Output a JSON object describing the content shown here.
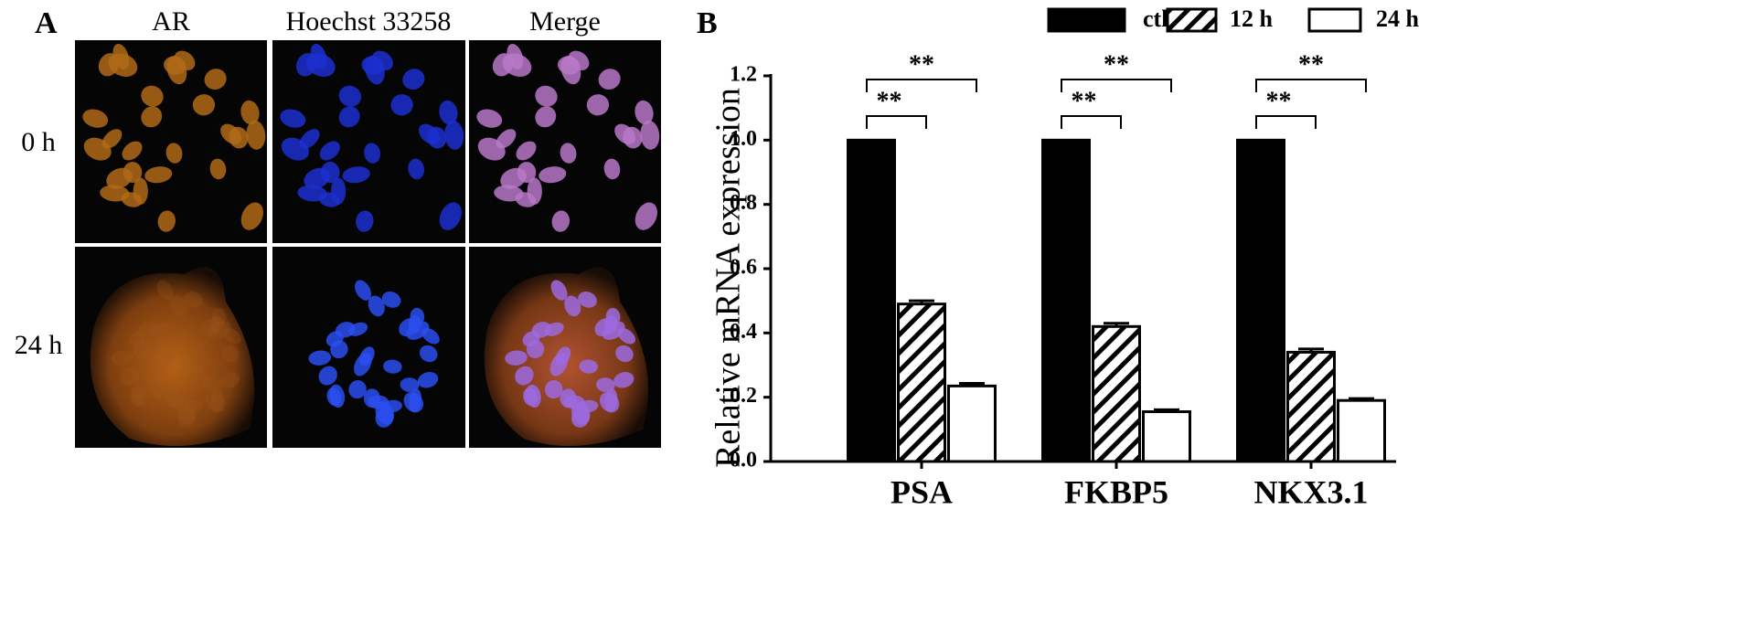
{
  "panel_a": {
    "label": "A",
    "columns": [
      "AR",
      "Hoechst 33258",
      "Merge"
    ],
    "rows": [
      "0 h",
      "24 h"
    ]
  },
  "chart_data": {
    "type": "bar",
    "panel_label": "B",
    "ylabel": "Relative mRNA expression",
    "categories": [
      "PSA",
      "FKBP5",
      "NKX3.1"
    ],
    "series": [
      {
        "name": "ctl",
        "color": "#000000",
        "fill": "solid",
        "values": [
          1.0,
          1.0,
          1.0
        ]
      },
      {
        "name": "12 h",
        "color": "#000000",
        "fill": "hatch",
        "values": [
          0.49,
          0.42,
          0.34
        ],
        "errors": [
          0.01,
          0.01,
          0.01
        ]
      },
      {
        "name": "24 h",
        "color": "#000000",
        "fill": "empty",
        "values": [
          0.235,
          0.155,
          0.19
        ],
        "errors": [
          0.008,
          0.006,
          0.006
        ]
      }
    ],
    "annotations": [
      "**",
      "**",
      "**",
      "**",
      "**",
      "**"
    ],
    "ylim": [
      0,
      1.2
    ],
    "yticks": [
      {
        "value": 0,
        "label": "0.0"
      },
      0.2,
      0.4,
      0.6,
      0.8,
      {
        "value": 1,
        "label": "1.0"
      },
      1.2
    ],
    "legend": "top"
  }
}
